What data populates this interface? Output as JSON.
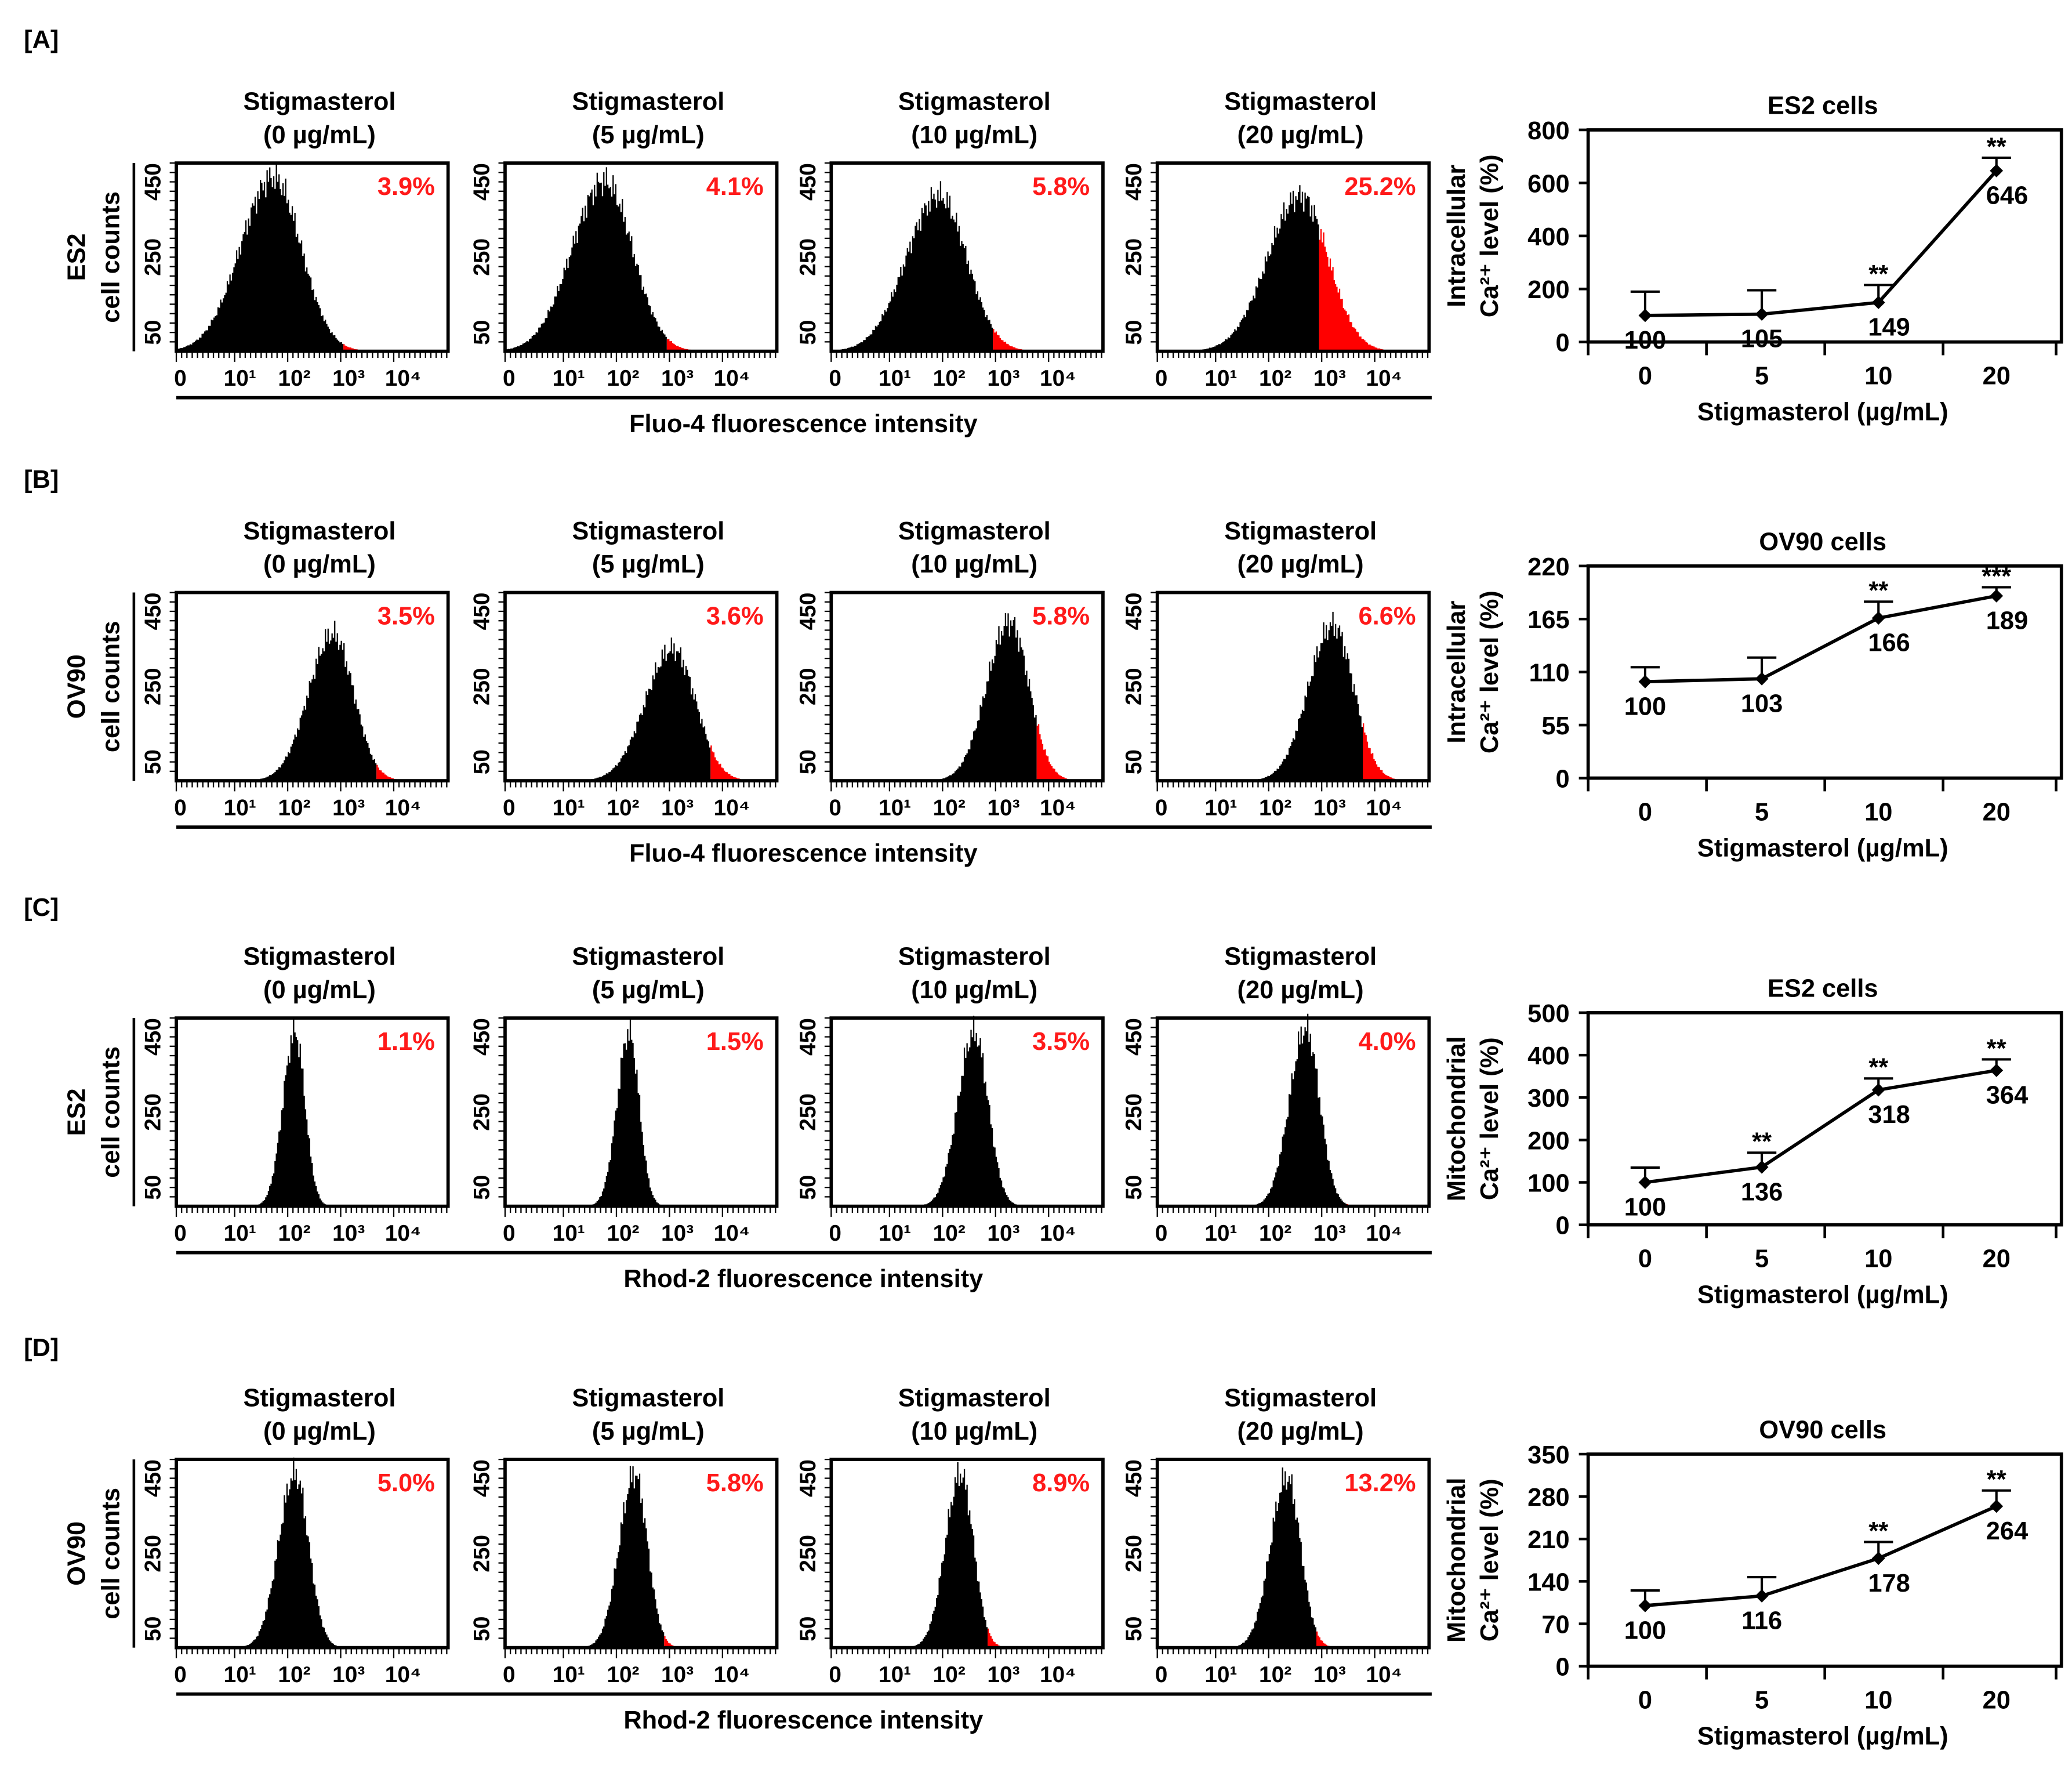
{
  "hist_axes": {
    "y_ticks": [
      "450",
      "250",
      "50"
    ],
    "x_ticks": [
      "0",
      "10¹",
      "10²",
      "10³",
      "10⁴"
    ]
  },
  "rows": [
    {
      "label": "[A]",
      "cell": "ES2",
      "hist_ylabel": "cell counts",
      "hist_xlabel": "Fluo-4 fluorescence intensity",
      "panels": [
        {
          "title": "Stigmasterol",
          "dose": "(0 µg/mL)",
          "pct": "3.9%",
          "peak_log": 1.6,
          "spread": 0.6,
          "gate_log": 2.9,
          "peak_frac": 0.95
        },
        {
          "title": "Stigmasterol",
          "dose": "(5 µg/mL)",
          "pct": "4.1%",
          "peak_log": 1.65,
          "spread": 0.6,
          "gate_log": 2.8,
          "peak_frac": 0.93
        },
        {
          "title": "Stigmasterol",
          "dose": "(10 µg/mL)",
          "pct": "5.8%",
          "peak_log": 1.8,
          "spread": 0.6,
          "gate_log": 2.8,
          "peak_frac": 0.85
        },
        {
          "title": "Stigmasterol",
          "dose": "(20 µg/mL)",
          "pct": "25.2%",
          "peak_log": 2.45,
          "spread": 0.6,
          "gate_log": 2.8,
          "peak_frac": 0.85
        }
      ],
      "chart_data": {
        "type": "line",
        "title": "ES2 cells",
        "ylabel": [
          "Intracellular",
          "Ca²⁺ level (%)"
        ],
        "xlabel": "Stigmasterol (µg/mL)",
        "categories": [
          "0",
          "5",
          "10",
          "20"
        ],
        "values": [
          100,
          105,
          149,
          646
        ],
        "value_labels": [
          "100",
          "105",
          "149",
          "646"
        ],
        "error_upper": [
          190,
          195,
          215,
          695
        ],
        "significance": [
          "",
          "",
          "**",
          "**"
        ],
        "ylim": [
          0,
          800
        ],
        "yticks": [
          "0",
          "200",
          "400",
          "600",
          "800"
        ]
      }
    },
    {
      "label": "[B]",
      "cell": "OV90",
      "hist_ylabel": "cell counts",
      "hist_xlabel": "Fluo-4 fluorescence intensity",
      "panels": [
        {
          "title": "Stigmasterol",
          "dose": "(0 µg/mL)",
          "pct": "3.5%",
          "peak_log": 2.7,
          "spread": 0.45,
          "gate_log": 3.5,
          "peak_frac": 0.8
        },
        {
          "title": "Stigmasterol",
          "dose": "(5 µg/mL)",
          "pct": "3.6%",
          "peak_log": 2.9,
          "spread": 0.5,
          "gate_log": 3.6,
          "peak_frac": 0.72
        },
        {
          "title": "Stigmasterol",
          "dose": "(10 µg/mL)",
          "pct": "5.8%",
          "peak_log": 3.1,
          "spread": 0.42,
          "gate_log": 3.6,
          "peak_frac": 0.87
        },
        {
          "title": "Stigmasterol",
          "dose": "(20 µg/mL)",
          "pct": "6.6%",
          "peak_log": 3.05,
          "spread": 0.45,
          "gate_log": 3.6,
          "peak_frac": 0.85
        }
      ],
      "chart_data": {
        "type": "line",
        "title": "OV90 cells",
        "ylabel": [
          "Intracellular",
          "Ca²⁺ level (%)"
        ],
        "xlabel": "Stigmasterol (µg/mL)",
        "categories": [
          "0",
          "5",
          "10",
          "20"
        ],
        "values": [
          100,
          103,
          166,
          189
        ],
        "value_labels": [
          "100",
          "103",
          "166",
          "189"
        ],
        "error_upper": [
          115,
          125,
          183,
          198
        ],
        "significance": [
          "",
          "",
          "**",
          "***"
        ],
        "ylim": [
          0,
          220
        ],
        "yticks": [
          "0",
          "55",
          "110",
          "165",
          "220"
        ]
      }
    },
    {
      "label": "[C]",
      "cell": "ES2",
      "hist_ylabel": "cell counts",
      "hist_xlabel": "Rhod-2 fluorescence intensity",
      "panels": [
        {
          "title": "Stigmasterol",
          "dose": "(0 µg/mL)",
          "pct": "1.1%",
          "peak_log": 2.0,
          "spread": 0.22,
          "gate_log": 3.2,
          "peak_frac": 0.95
        },
        {
          "title": "Stigmasterol",
          "dose": "(5 µg/mL)",
          "pct": "1.5%",
          "peak_log": 2.1,
          "spread": 0.22,
          "gate_log": 3.2,
          "peak_frac": 0.95
        },
        {
          "title": "Stigmasterol",
          "dose": "(10 µg/mL)",
          "pct": "3.5%",
          "peak_log": 2.45,
          "spread": 0.3,
          "gate_log": 3.3,
          "peak_frac": 0.95
        },
        {
          "title": "Stigmasterol",
          "dose": "(20 µg/mL)",
          "pct": "4.0%",
          "peak_log": 2.55,
          "spread": 0.3,
          "gate_log": 3.3,
          "peak_frac": 0.97
        }
      ],
      "chart_data": {
        "type": "line",
        "title": "ES2 cells",
        "ylabel": [
          "Mitochondrial",
          "Ca²⁺ level (%)"
        ],
        "xlabel": "Stigmasterol (µg/mL)",
        "categories": [
          "0",
          "5",
          "10",
          "20"
        ],
        "values": [
          100,
          136,
          318,
          364
        ],
        "value_labels": [
          "100",
          "136",
          "318",
          "364"
        ],
        "error_upper": [
          135,
          170,
          345,
          390
        ],
        "significance": [
          "",
          "**",
          "**",
          "**"
        ],
        "ylim": [
          0,
          500
        ],
        "yticks": [
          "0",
          "100",
          "200",
          "300",
          "400",
          "500"
        ]
      }
    },
    {
      "label": "[D]",
      "cell": "OV90",
      "hist_ylabel": "cell counts",
      "hist_xlabel": "Rhod-2 fluorescence intensity",
      "panels": [
        {
          "title": "Stigmasterol",
          "dose": "(0 µg/mL)",
          "pct": "5.0%",
          "peak_log": 2.0,
          "spread": 0.3,
          "gate_log": 2.8,
          "peak_frac": 0.95
        },
        {
          "title": "Stigmasterol",
          "dose": "(5 µg/mL)",
          "pct": "5.8%",
          "peak_log": 2.2,
          "spread": 0.28,
          "gate_log": 2.75,
          "peak_frac": 0.95
        },
        {
          "title": "Stigmasterol",
          "dose": "(10 µg/mL)",
          "pct": "8.9%",
          "peak_log": 2.2,
          "spread": 0.28,
          "gate_log": 2.7,
          "peak_frac": 0.95
        },
        {
          "title": "Stigmasterol",
          "dose": "(20 µg/mL)",
          "pct": "13.2%",
          "peak_log": 2.2,
          "spread": 0.3,
          "gate_log": 2.75,
          "peak_frac": 0.93
        }
      ],
      "chart_data": {
        "type": "line",
        "title": "OV90 cells",
        "ylabel": [
          "Mitochondrial",
          "Ca²⁺ level (%)"
        ],
        "xlabel": "Stigmasterol (µg/mL)",
        "categories": [
          "0",
          "5",
          "10",
          "20"
        ],
        "values": [
          100,
          116,
          178,
          264
        ],
        "value_labels": [
          "100",
          "116",
          "178",
          "264"
        ],
        "error_upper": [
          125,
          147,
          205,
          290
        ],
        "significance": [
          "",
          "",
          "**",
          "**"
        ],
        "ylim": [
          0,
          350
        ],
        "yticks": [
          "0",
          "70",
          "140",
          "210",
          "280",
          "350"
        ]
      }
    }
  ],
  "colors": {
    "gate": "#ff0000",
    "hist": "#000000",
    "text_red": "#ff1a1a"
  }
}
